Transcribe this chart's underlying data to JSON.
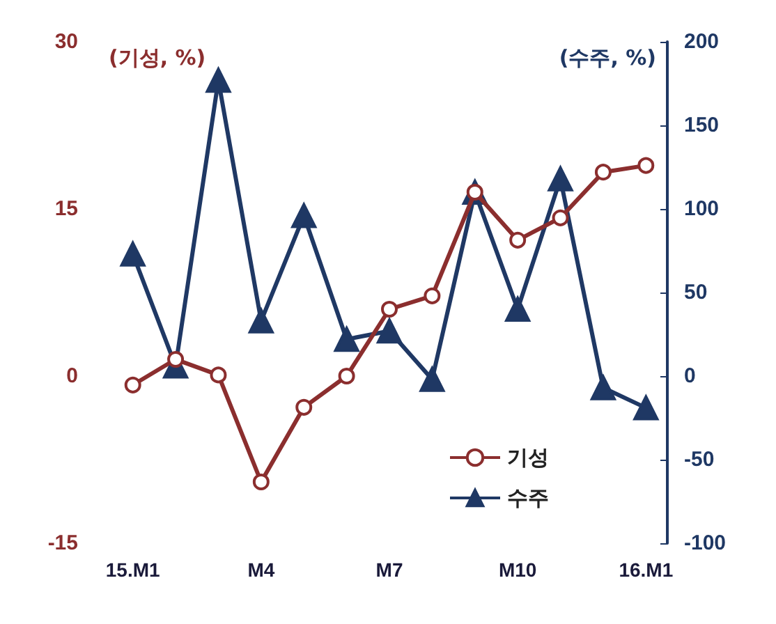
{
  "chart_data": {
    "type": "line",
    "categories": [
      "15.M1",
      null,
      null,
      "M4",
      null,
      null,
      "M7",
      null,
      null,
      "M10",
      null,
      null,
      "16.M1"
    ],
    "series": [
      {
        "name": "기성",
        "color": "#8b2e2e",
        "marker": "circle",
        "values": [
          -0.8,
          1.5,
          0.1,
          -9.5,
          -2.8,
          0,
          6.0,
          7.2,
          16.5,
          12.2,
          14.2,
          18.3,
          18.9
        ]
      },
      {
        "name": "수주",
        "color": "#1f3864",
        "marker": "triangle",
        "axis": "y2",
        "values": [
          73,
          6,
          177,
          33,
          96,
          22,
          27,
          -2,
          110,
          40,
          118,
          -7,
          -19
        ]
      }
    ],
    "ylim": [
      -15,
      30
    ],
    "yticks": [
      -15,
      0,
      15,
      30
    ],
    "y2lim": [
      -100,
      200
    ],
    "y2ticks": [
      -100,
      -50,
      0,
      50,
      100,
      150,
      200
    ],
    "annotations": [
      "(기성, %)",
      "(수주, %)"
    ],
    "legend": "bottom right",
    "grid": false
  }
}
